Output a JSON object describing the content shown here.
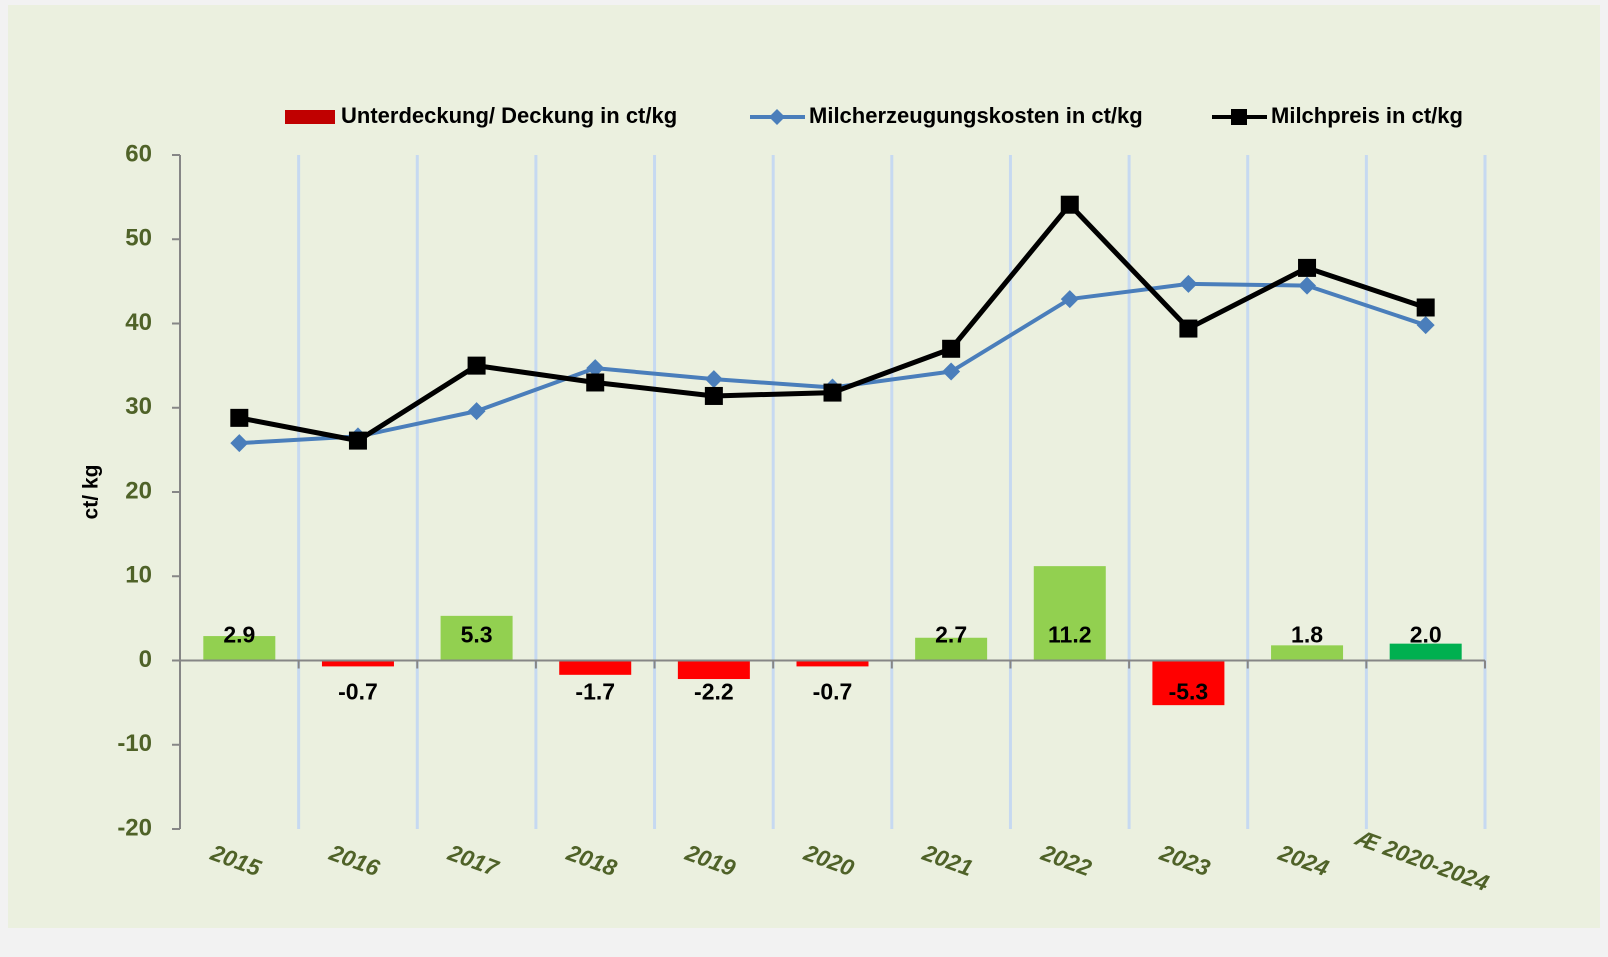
{
  "chart_data": {
    "type": "bar",
    "y_label": "ct/ kg",
    "categories": [
      "2015",
      "2016",
      "2017",
      "2018",
      "2019",
      "2020",
      "2021",
      "2022",
      "2023",
      "2024",
      "Æ 2020-2024"
    ],
    "series": [
      {
        "name": "Unterdeckung/ Deckung in ct/kg",
        "type": "bar",
        "color": "#c00000",
        "colors": [
          "#92d050",
          "#ff0000",
          "#92d050",
          "#ff0000",
          "#ff0000",
          "#ff0000",
          "#92d050",
          "#92d050",
          "#ff0000",
          "#92d050",
          "#00b050"
        ],
        "values": [
          2.9,
          -0.7,
          5.3,
          -1.7,
          -2.2,
          -0.7,
          2.7,
          11.2,
          -5.3,
          1.8,
          2.0
        ],
        "value_labels": [
          "2.9",
          "-0.7",
          "5.3",
          "-1.7",
          "-2.2",
          "-0.7",
          "2.7",
          "11.2",
          "-5.3",
          "1.8",
          "2.0"
        ]
      },
      {
        "name": "Milcherzeugungskosten in ct/kg",
        "type": "line",
        "marker": "diamond",
        "color": "#4a7ebb",
        "values": [
          25.8,
          26.6,
          29.6,
          34.7,
          33.4,
          32.4,
          34.3,
          42.9,
          44.7,
          44.5,
          39.8
        ]
      },
      {
        "name": "Milchpreis in ct/kg",
        "type": "line",
        "marker": "square",
        "color": "#000000",
        "values": [
          28.8,
          26.1,
          35.0,
          33.0,
          31.4,
          31.8,
          37.0,
          54.1,
          39.4,
          46.6,
          41.9
        ]
      }
    ],
    "ylim": [
      -20,
      60
    ],
    "yticks": [
      -20,
      -10,
      0,
      10,
      20,
      30,
      40,
      50,
      60
    ],
    "xgrid": true,
    "legend": "top"
  }
}
